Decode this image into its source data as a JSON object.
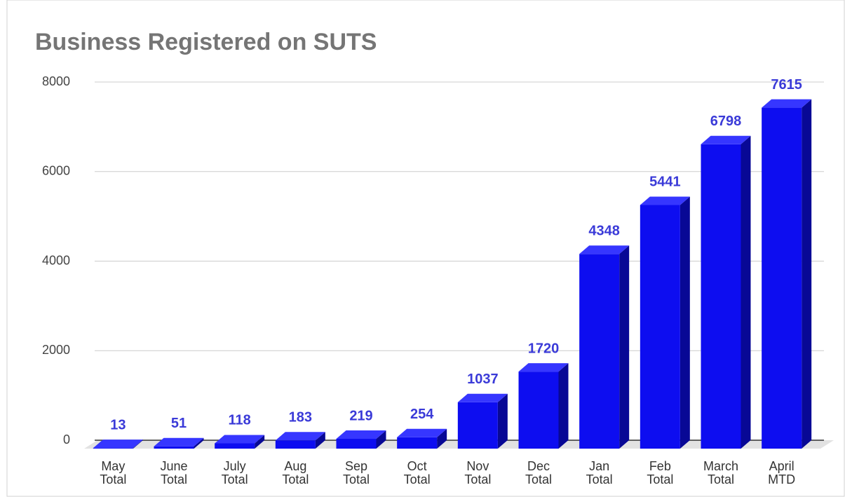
{
  "chart_data": {
    "type": "bar3d",
    "title": "Business Registered on SUTS",
    "categories": [
      "May Total",
      "June Total",
      "July Total",
      "Aug Total",
      "Sep Total",
      "Oct Total",
      "Nov Total",
      "Dec Total",
      "Jan Total",
      "Feb Total",
      "March Total",
      "April MTD"
    ],
    "values": [
      13,
      51,
      118,
      183,
      219,
      254,
      1037,
      1720,
      4348,
      5441,
      6798,
      7615
    ],
    "color": "#0d0df0",
    "ylim": [
      0,
      8000
    ],
    "yticks": [
      0,
      2000,
      4000,
      6000,
      8000
    ],
    "grid": true
  }
}
